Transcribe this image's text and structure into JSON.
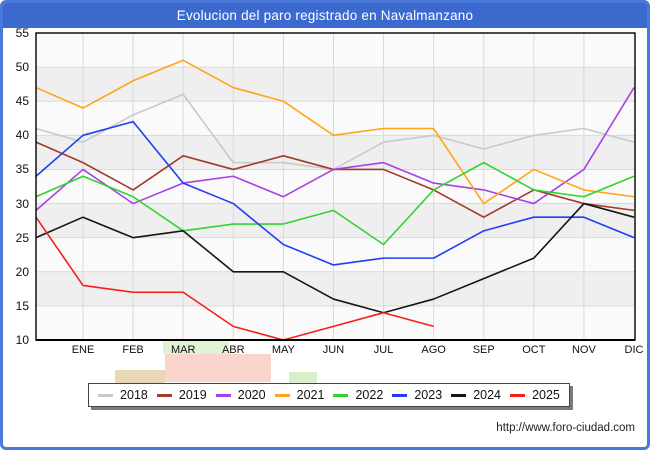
{
  "title": "Evolucion del paro registrado en Navalmanzano",
  "footer": {
    "url": "http://www.foro-ciudad.com"
  },
  "colors": {
    "titlebar": "#3b69ce",
    "frame_border": "#4a78d8",
    "plot_bg": "#fafafa",
    "band": "#efefef",
    "grid": "#d9d9d9",
    "axis": "#000000"
  },
  "chart_data": {
    "type": "line",
    "title": "Evolucion del paro registrado en Navalmanzano",
    "categories": [
      "ENE",
      "FEB",
      "MAR",
      "ABR",
      "MAY",
      "JUN",
      "JUL",
      "AGO",
      "SEP",
      "OCT",
      "NOV",
      "DIC"
    ],
    "ylim": [
      10,
      55
    ],
    "y_ticks": [
      55,
      50,
      45,
      40,
      35,
      30,
      25,
      20,
      15,
      10
    ],
    "grid": true,
    "legend_position": "bottom",
    "note_start": "each line starts at the left plot border with the previous December value",
    "series": [
      {
        "name": "2018",
        "color": "#c9c9c9",
        "start": 41,
        "values": [
          39,
          43,
          46,
          36,
          36,
          35,
          39,
          40,
          38,
          40,
          41,
          39
        ]
      },
      {
        "name": "2019",
        "color": "#a33a2a",
        "start": 39,
        "values": [
          36,
          32,
          37,
          35,
          37,
          35,
          35,
          32,
          28,
          32,
          30,
          29
        ]
      },
      {
        "name": "2020",
        "color": "#a840e8",
        "start": 29,
        "values": [
          35,
          30,
          33,
          34,
          31,
          35,
          36,
          33,
          32,
          30,
          35,
          47
        ]
      },
      {
        "name": "2021",
        "color": "#ffa41c",
        "start": 47,
        "values": [
          44,
          48,
          51,
          47,
          45,
          40,
          41,
          41,
          30,
          35,
          32,
          31
        ]
      },
      {
        "name": "2022",
        "color": "#2fd42f",
        "start": 31,
        "values": [
          34,
          31,
          26,
          27,
          27,
          29,
          24,
          32,
          36,
          32,
          31,
          34
        ]
      },
      {
        "name": "2023",
        "color": "#1f3ef5",
        "start": 34,
        "values": [
          40,
          42,
          33,
          30,
          24,
          21,
          22,
          22,
          26,
          28,
          28,
          25
        ]
      },
      {
        "name": "2024",
        "color": "#151515",
        "start": 25,
        "values": [
          28,
          25,
          26,
          20,
          20,
          16,
          14,
          16,
          19,
          22,
          30,
          28
        ]
      },
      {
        "name": "2025",
        "color": "#f5201a",
        "start": 28,
        "values": [
          18,
          17,
          17,
          12,
          10,
          12,
          14,
          12,
          null,
          null,
          null,
          null
        ]
      }
    ]
  }
}
